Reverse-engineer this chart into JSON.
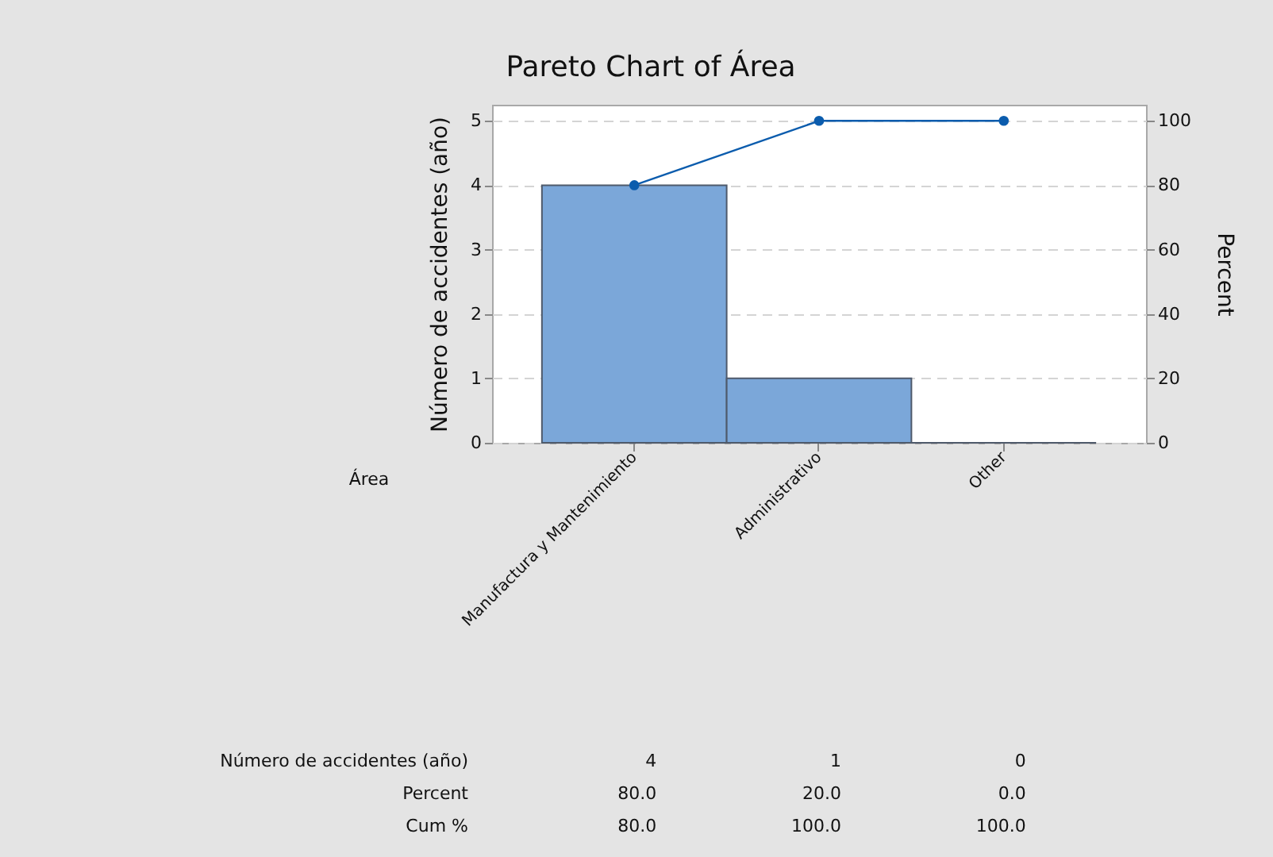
{
  "chart_data": {
    "type": "bar",
    "title": "Pareto Chart of Área",
    "xlabel": "Área",
    "ylabel": "Número de accidentes (año)",
    "y2label": "Percent",
    "categories": [
      "Manufactura y Mantenimiento",
      "Administrativo",
      "Other"
    ],
    "series": [
      {
        "color": "#7ba7d9",
        "values": [
          4,
          1,
          0
        ],
        "value_labels": [
          "4",
          "1",
          "0"
        ]
      },
      {
        "type": "line",
        "axis": "y2",
        "color": "#0b5cad",
        "values": [
          80,
          100,
          100
        ],
        "value_labels": [
          "80.0",
          "100.0",
          "100.0"
        ]
      }
    ],
    "annotations": [
      "Número de accidentes (año)",
      "Percent",
      "80.0",
      "20.0",
      "0.0",
      "Cum %"
    ],
    "ylim": [
      0,
      5.25
    ],
    "yticks": [
      0,
      1,
      2,
      3,
      4,
      5
    ],
    "y2lim": [
      0,
      105
    ],
    "y2ticks": [
      0,
      20,
      40,
      60,
      80,
      100
    ],
    "grid": "y",
    "marker": "circle",
    "line_style": "solid"
  }
}
